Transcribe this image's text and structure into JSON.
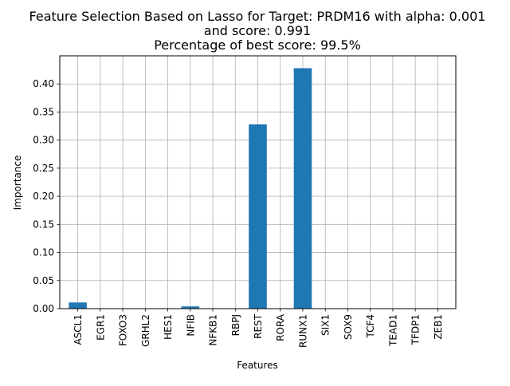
{
  "chart_data": {
    "type": "bar",
    "title_lines": [
      "Feature Selection Based on Lasso for Target: PRDM16 with alpha: 0.001",
      "and score: 0.991",
      "Percentage of best score: 99.5%"
    ],
    "xlabel": "Features",
    "ylabel": "Importance",
    "categories": [
      "ASCL1",
      "EGR1",
      "FOXO3",
      "GRHL2",
      "HES1",
      "NFIB",
      "NFKB1",
      "RBPJ",
      "REST",
      "RORA",
      "RUNX1",
      "SIX1",
      "SOX9",
      "TCF4",
      "TEAD1",
      "TFDP1",
      "ZEB1"
    ],
    "values": [
      0.011,
      0,
      0,
      0,
      0,
      0.004,
      0,
      0,
      0.328,
      0,
      0.428,
      0,
      0,
      0,
      0,
      0,
      0
    ],
    "ylim": [
      0,
      0.45
    ],
    "yticks": [
      "0.00",
      "0.05",
      "0.10",
      "0.15",
      "0.20",
      "0.25",
      "0.30",
      "0.35",
      "0.40"
    ],
    "grid": true,
    "bar_color": "#1f77b4"
  }
}
